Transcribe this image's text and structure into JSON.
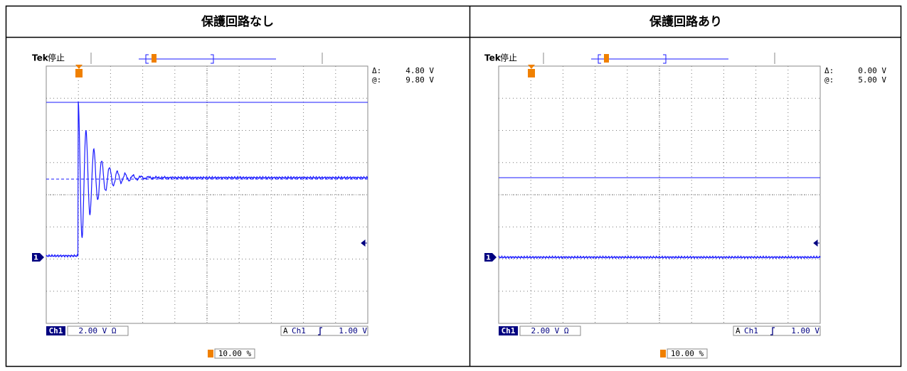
{
  "header": {
    "cells": [
      "保護回路なし",
      "保護回路あり"
    ]
  },
  "panels": [
    {
      "brand": "Tek",
      "status": "停止",
      "channel_marker": "1",
      "delta_label": "Δ:",
      "delta": "4.80 V",
      "at_label": "@:",
      "at": "9.80 V",
      "channel": "Ch1",
      "scale": "2.00 V Ω",
      "trigger_source_label": "A",
      "trigger_channel": "Ch1",
      "trigger_level": "1.00 V",
      "trigger_position": "10.00 %"
    },
    {
      "brand": "Tek",
      "status": "停止",
      "channel_marker": "1",
      "delta_label": "Δ:",
      "delta": "0.00 V",
      "at_label": "@:",
      "at": "5.00 V",
      "channel": "Ch1",
      "scale": "2.00 V Ω",
      "trigger_source_label": "A",
      "trigger_channel": "Ch1",
      "trigger_level": "1.00 V",
      "trigger_position": "10.00 %"
    }
  ]
}
